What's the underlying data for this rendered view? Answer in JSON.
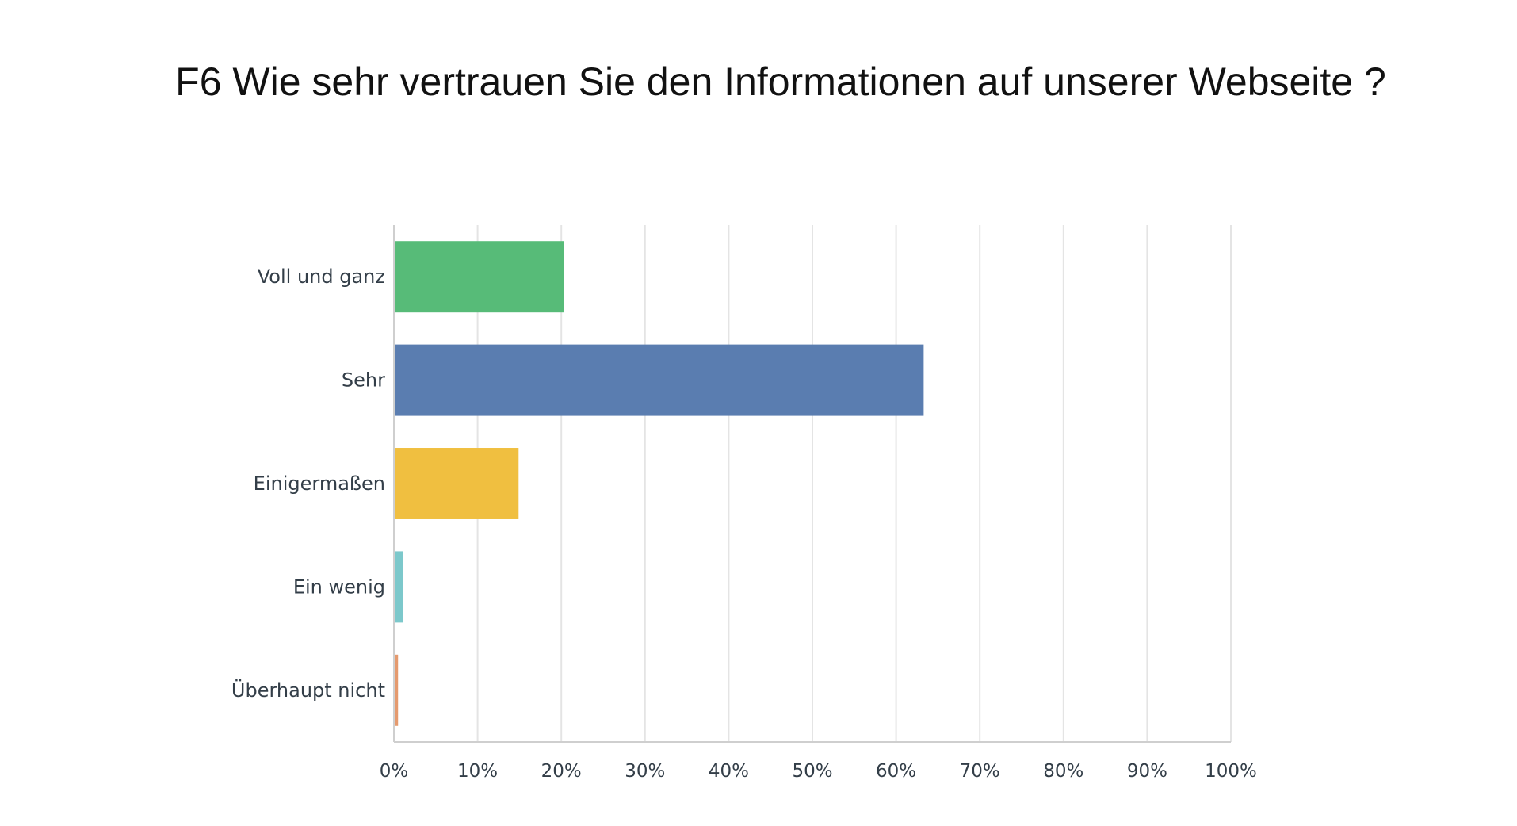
{
  "chart_data": {
    "type": "bar",
    "orientation": "horizontal",
    "title": "F6 Wie sehr vertrauen Sie den Informationen auf unserer Webseite ?",
    "xlabel": "",
    "ylabel": "",
    "categories": [
      "Voll und ganz",
      "Sehr",
      "Einigermaßen",
      "Ein wenig",
      "Überhaupt nicht"
    ],
    "values": [
      20.2,
      63.2,
      14.8,
      1.0,
      0.4
    ],
    "value_unit": "%",
    "xlim": [
      0,
      100
    ],
    "x_ticks": [
      "0%",
      "10%",
      "20%",
      "30%",
      "40%",
      "50%",
      "60%",
      "70%",
      "80%",
      "90%",
      "100%"
    ],
    "grid": "vertical",
    "legend": "none",
    "colors": [
      "#57bb78",
      "#5a7db0",
      "#f0bf40",
      "#7cc8cb",
      "#e59a6e"
    ],
    "gridline_color": "#e4e4e4",
    "axis_color": "#cfcfcf"
  }
}
